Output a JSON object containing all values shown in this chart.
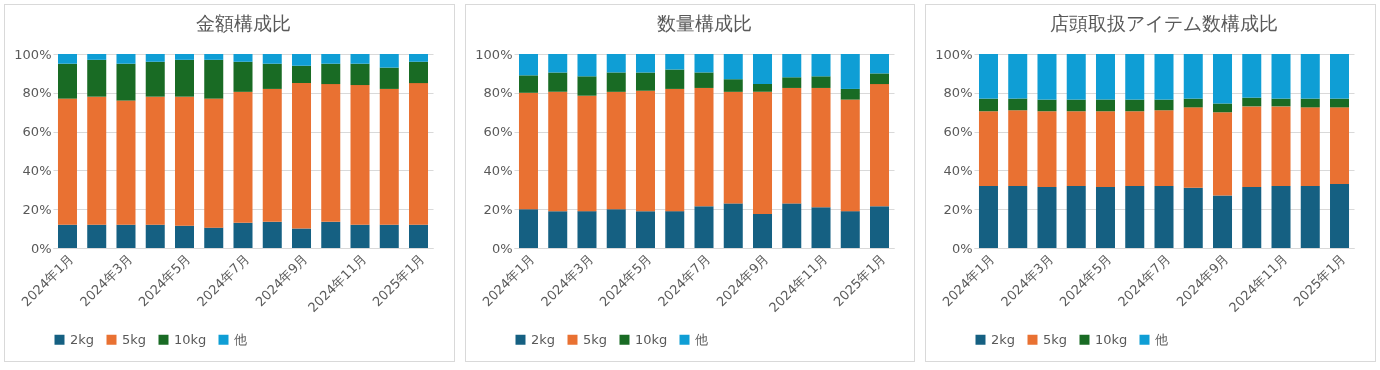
{
  "chart_data": [
    {
      "type": "bar",
      "stacked": true,
      "title": "金額構成比",
      "categories": [
        "2024年1月",
        null,
        "2024年3月",
        null,
        "2024年5月",
        null,
        "2024年7月",
        null,
        "2024年9月",
        null,
        "2024年11月",
        null,
        "2025年1月"
      ],
      "series": [
        {
          "name": "2kg",
          "color": "#156082",
          "values": [
            12,
            12,
            12,
            12,
            11.5,
            10.5,
            13,
            13.5,
            10,
            13.5,
            12,
            12,
            12
          ]
        },
        {
          "name": "5kg",
          "color": "#e97132",
          "values": [
            65,
            66,
            64,
            66,
            66.5,
            66.5,
            67.5,
            68.5,
            75,
            71,
            72,
            70,
            73
          ]
        },
        {
          "name": "10kg",
          "color": "#196b24",
          "values": [
            18,
            19,
            19,
            18,
            19,
            20,
            15.5,
            13,
            9,
            10.5,
            11,
            11,
            11
          ]
        },
        {
          "name": "他",
          "color": "#0f9ed5",
          "values": [
            5,
            3,
            5,
            4,
            3,
            3,
            4,
            5,
            6,
            5,
            5,
            7,
            4
          ]
        }
      ],
      "ylim": [
        0,
        100
      ],
      "yticks": [
        {
          "value": 0,
          "label": "0%"
        },
        {
          "value": 20,
          "label": "20%"
        },
        {
          "value": 40,
          "label": "40%"
        },
        {
          "value": 60,
          "label": "60%"
        },
        {
          "value": 80,
          "label": "80%"
        },
        {
          "value": 100,
          "label": "100%"
        }
      ],
      "grid": "y",
      "legend": "bottom"
    },
    {
      "type": "bar",
      "stacked": true,
      "title": "数量構成比",
      "categories": [
        "2024年1月",
        null,
        "2024年3月",
        null,
        "2024年5月",
        null,
        "2024年7月",
        null,
        "2024年9月",
        null,
        "2024年11月",
        null,
        "2025年1月"
      ],
      "series": [
        {
          "name": "2kg",
          "color": "#156082",
          "values": [
            20,
            19,
            19,
            20,
            19,
            19,
            21.5,
            23,
            17.5,
            23,
            21,
            19,
            21.5
          ]
        },
        {
          "name": "5kg",
          "color": "#e97132",
          "values": [
            60,
            61.5,
            59.5,
            60.5,
            62,
            63,
            61,
            57.5,
            63,
            59.5,
            61.5,
            57.5,
            63
          ]
        },
        {
          "name": "10kg",
          "color": "#196b24",
          "values": [
            9,
            10,
            10,
            10,
            9.5,
            10,
            8,
            6.5,
            4,
            5.5,
            6,
            5.5,
            5.5
          ]
        },
        {
          "name": "他",
          "color": "#0f9ed5",
          "values": [
            11,
            9.5,
            11.5,
            9.5,
            9.5,
            8,
            9.5,
            13,
            15.5,
            12,
            11.5,
            18,
            10
          ]
        }
      ],
      "ylim": [
        0,
        100
      ],
      "yticks": [
        {
          "value": 0,
          "label": "0%"
        },
        {
          "value": 20,
          "label": "20%"
        },
        {
          "value": 40,
          "label": "40%"
        },
        {
          "value": 60,
          "label": "60%"
        },
        {
          "value": 80,
          "label": "80%"
        },
        {
          "value": 100,
          "label": "100%"
        }
      ],
      "grid": "y",
      "legend": "bottom"
    },
    {
      "type": "bar",
      "stacked": true,
      "title": "店頭取扱アイテム数構成比",
      "categories": [
        "2024年1月",
        null,
        "2024年3月",
        null,
        "2024年5月",
        null,
        "2024年7月",
        null,
        "2024年9月",
        null,
        "2024年11月",
        null,
        "2025年1月"
      ],
      "series": [
        {
          "name": "2kg",
          "color": "#156082",
          "values": [
            32,
            32,
            31.5,
            32,
            31.5,
            32,
            32,
            31,
            27,
            31.5,
            32,
            32,
            33
          ]
        },
        {
          "name": "5kg",
          "color": "#e97132",
          "values": [
            38.5,
            39,
            39,
            38.5,
            39,
            38.5,
            39,
            41.5,
            43,
            41.5,
            41,
            40.5,
            39.5
          ]
        },
        {
          "name": "10kg",
          "color": "#196b24",
          "values": [
            6.5,
            6,
            6,
            6,
            6,
            6,
            5.5,
            4.5,
            4.5,
            4.5,
            4,
            4.5,
            4.5
          ]
        },
        {
          "name": "他",
          "color": "#0f9ed5",
          "values": [
            23,
            23,
            23.5,
            23.5,
            23.5,
            23.5,
            23.5,
            23,
            25.5,
            22.5,
            23,
            23,
            23
          ]
        }
      ],
      "ylim": [
        0,
        100
      ],
      "yticks": [
        {
          "value": 0,
          "label": "0%"
        },
        {
          "value": 20,
          "label": "20%"
        },
        {
          "value": 40,
          "label": "40%"
        },
        {
          "value": 60,
          "label": "60%"
        },
        {
          "value": 80,
          "label": "80%"
        },
        {
          "value": 100,
          "label": "100%"
        }
      ],
      "grid": "y",
      "legend": "bottom"
    }
  ]
}
